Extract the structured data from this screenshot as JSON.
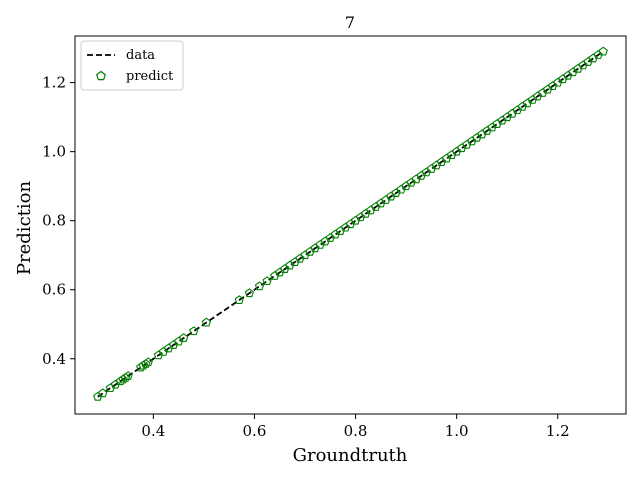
{
  "chart_data": {
    "type": "scatter",
    "title": "7",
    "xlabel": "Groundtruth",
    "ylabel": "Prediction",
    "xlim": [
      0.245,
      1.335
    ],
    "ylim": [
      0.24,
      1.335
    ],
    "xticks": [
      0.4,
      0.6,
      0.8,
      1.0,
      1.2
    ],
    "xtick_labels": [
      "0.4",
      "0.6",
      "0.8",
      "1.0",
      "1.2"
    ],
    "yticks": [
      0.4,
      0.6,
      0.8,
      1.0,
      1.2
    ],
    "ytick_labels": [
      "0.4",
      "0.6",
      "0.8",
      "1.0",
      "1.2"
    ],
    "grid": false,
    "legend_position": "top-left",
    "legend": [
      "data",
      "predict"
    ],
    "series": [
      {
        "name": "data",
        "kind": "line",
        "style": "dashed",
        "color": "#000000",
        "x": [
          0.29,
          1.29
        ],
        "y": [
          0.29,
          1.29
        ]
      },
      {
        "name": "predict",
        "kind": "scatter",
        "marker": "pentagon",
        "color": "#008000",
        "x": [
          0.29,
          0.3,
          0.315,
          0.325,
          0.335,
          0.34,
          0.345,
          0.35,
          0.375,
          0.38,
          0.385,
          0.39,
          0.41,
          0.42,
          0.43,
          0.44,
          0.45,
          0.46,
          0.48,
          0.505,
          0.57,
          0.59,
          0.61,
          0.625,
          0.64,
          0.65,
          0.66,
          0.67,
          0.68,
          0.69,
          0.7,
          0.71,
          0.72,
          0.73,
          0.74,
          0.75,
          0.76,
          0.77,
          0.78,
          0.79,
          0.8,
          0.81,
          0.82,
          0.83,
          0.84,
          0.85,
          0.86,
          0.87,
          0.88,
          0.89,
          0.9,
          0.91,
          0.92,
          0.93,
          0.94,
          0.95,
          0.96,
          0.97,
          0.98,
          0.99,
          1.0,
          1.01,
          1.02,
          1.03,
          1.04,
          1.05,
          1.06,
          1.07,
          1.08,
          1.09,
          1.1,
          1.11,
          1.12,
          1.13,
          1.14,
          1.15,
          1.16,
          1.17,
          1.18,
          1.19,
          1.2,
          1.21,
          1.22,
          1.23,
          1.24,
          1.25,
          1.26,
          1.27,
          1.28,
          1.29
        ],
        "y": [
          0.29,
          0.3,
          0.315,
          0.325,
          0.335,
          0.34,
          0.345,
          0.35,
          0.375,
          0.38,
          0.385,
          0.39,
          0.41,
          0.42,
          0.43,
          0.44,
          0.45,
          0.46,
          0.48,
          0.505,
          0.57,
          0.59,
          0.61,
          0.625,
          0.64,
          0.65,
          0.66,
          0.67,
          0.68,
          0.69,
          0.7,
          0.71,
          0.72,
          0.73,
          0.74,
          0.75,
          0.76,
          0.77,
          0.78,
          0.79,
          0.8,
          0.81,
          0.82,
          0.83,
          0.84,
          0.85,
          0.86,
          0.87,
          0.88,
          0.89,
          0.9,
          0.91,
          0.92,
          0.93,
          0.94,
          0.95,
          0.96,
          0.97,
          0.98,
          0.99,
          1.0,
          1.01,
          1.02,
          1.03,
          1.04,
          1.05,
          1.06,
          1.07,
          1.08,
          1.09,
          1.1,
          1.11,
          1.12,
          1.13,
          1.14,
          1.15,
          1.16,
          1.17,
          1.18,
          1.19,
          1.2,
          1.21,
          1.22,
          1.23,
          1.24,
          1.25,
          1.26,
          1.27,
          1.28,
          1.29
        ]
      }
    ]
  }
}
